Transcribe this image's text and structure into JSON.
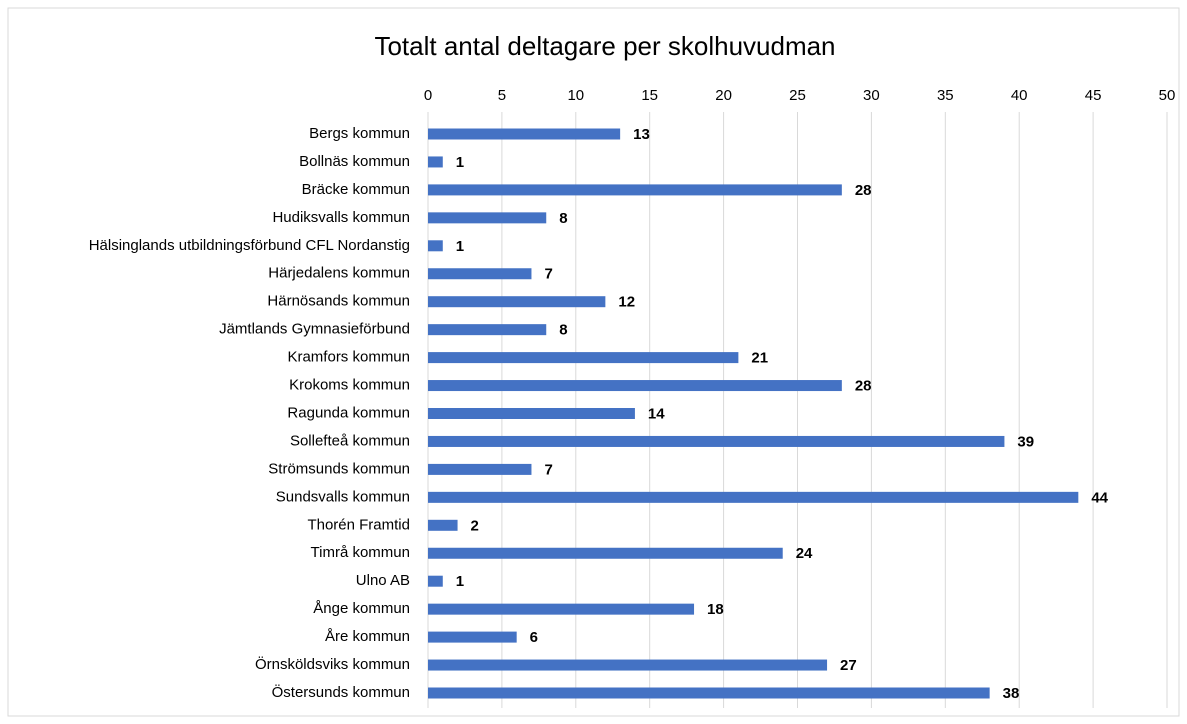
{
  "chart_data": {
    "type": "bar",
    "orientation": "horizontal",
    "title": "Totalt antal deltagare per skolhuvudman",
    "categories": [
      "Bergs kommun",
      "Bollnäs kommun",
      "Bräcke kommun",
      "Hudiksvalls kommun",
      "Hälsinglands utbildningsförbund CFL Nordanstig",
      "Härjedalens kommun",
      "Härnösands kommun",
      "Jämtlands Gymnasieförbund",
      "Kramfors kommun",
      "Krokoms kommun",
      "Ragunda kommun",
      "Sollefteå kommun",
      "Strömsunds kommun",
      "Sundsvalls kommun",
      "Thorén Framtid",
      "Timrå kommun",
      "Ulno AB",
      "Ånge kommun",
      "Åre kommun",
      "Örnsköldsviks kommun",
      "Östersunds kommun"
    ],
    "values": [
      13,
      1,
      28,
      8,
      1,
      7,
      12,
      8,
      21,
      28,
      14,
      39,
      7,
      44,
      2,
      24,
      1,
      18,
      6,
      27,
      38
    ],
    "color": "#4472c4",
    "xlim": [
      0,
      50
    ],
    "xticks": [
      0,
      5,
      10,
      15,
      20,
      25,
      30,
      35,
      40,
      45,
      50
    ],
    "grid": true
  }
}
